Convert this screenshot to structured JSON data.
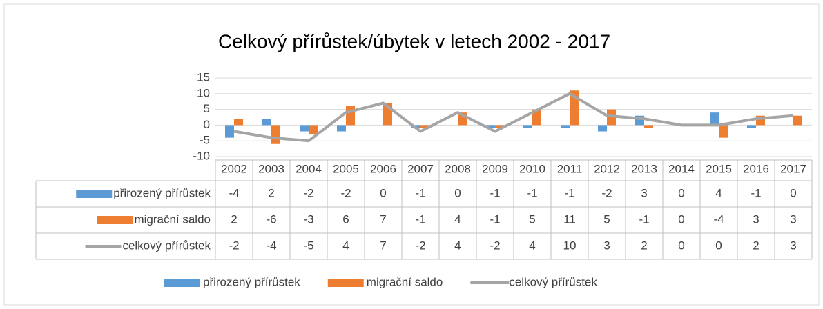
{
  "chart_data": {
    "type": "bar",
    "title": "Celkový přírůstek/úbytek v letech 2002 - 2017",
    "categories": [
      "2002",
      "2003",
      "2004",
      "2005",
      "2006",
      "2007",
      "2008",
      "2009",
      "2010",
      "2011",
      "2012",
      "2013",
      "2014",
      "2015",
      "2016",
      "2017"
    ],
    "series": [
      {
        "name": "přirozený přírůstek",
        "color": "#5b9bd5",
        "type": "bar",
        "values": [
          -4,
          2,
          -2,
          -2,
          0,
          -1,
          0,
          -1,
          -1,
          -1,
          -2,
          3,
          0,
          4,
          -1,
          0
        ]
      },
      {
        "name": "migrační saldo",
        "color": "#ed7d31",
        "type": "bar",
        "values": [
          2,
          -6,
          -3,
          6,
          7,
          -1,
          4,
          -1,
          5,
          11,
          5,
          -1,
          0,
          -4,
          3,
          3
        ]
      },
      {
        "name": "celkový přírůstek",
        "color": "#a5a5a5",
        "type": "line",
        "values": [
          -2,
          -4,
          -5,
          4,
          7,
          -2,
          4,
          -2,
          4,
          10,
          3,
          2,
          0,
          0,
          2,
          3
        ]
      }
    ],
    "ylim": [
      -10,
      15
    ],
    "yticks": [
      -10,
      -5,
      0,
      5,
      10,
      15
    ],
    "grid": true,
    "legend": "bottom",
    "data_table": true
  }
}
